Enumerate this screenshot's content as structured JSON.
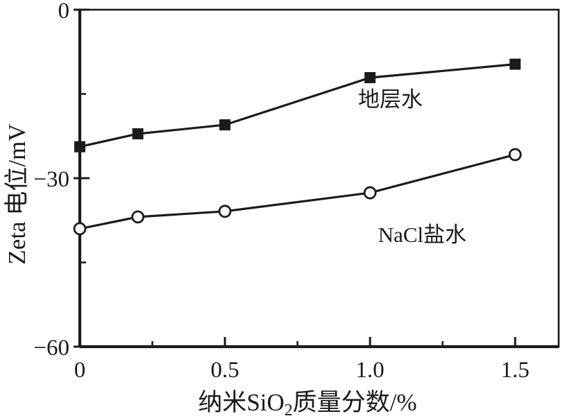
{
  "figure": {
    "background": "#ffffff",
    "ink_color": "#1b1b1b"
  },
  "chart_data": {
    "type": "line",
    "title": "",
    "xlabel": "纳米SiO₂质量分数/%",
    "xlabel_parts": {
      "pre": "纳米SiO",
      "sub": "2",
      "post": "质量分数/%"
    },
    "ylabel": "Zeta 电位/mV",
    "xlim": [
      0,
      1.65
    ],
    "ylim": [
      -60,
      0
    ],
    "grid": false,
    "legend_position": "inline-annotations",
    "x_major_ticks": [
      {
        "v": 0,
        "label": "0"
      },
      {
        "v": 0.5,
        "label": "0.5"
      },
      {
        "v": 1.0,
        "label": "1.0"
      },
      {
        "v": 1.5,
        "label": "1.5"
      }
    ],
    "x_minor_ticks": [
      0.25,
      0.75,
      1.25
    ],
    "y_major_ticks": [
      {
        "v": 0,
        "label": "0"
      },
      {
        "v": -30,
        "label": "−30"
      },
      {
        "v": -60,
        "label": "−60"
      }
    ],
    "y_minor_ticks": [
      -15,
      -45
    ],
    "x": [
      0,
      0.2,
      0.5,
      1.0,
      1.5
    ],
    "series": [
      {
        "name": "地层水",
        "key": "formation-water",
        "marker": "filled-square",
        "color": "#1b1b1b",
        "values": [
          -24.4,
          -22.1,
          -20.5,
          -12.1,
          -9.7
        ],
        "label": {
          "text": "地层水",
          "x": 1.07,
          "y": -15.9
        }
      },
      {
        "name": "NaCl盐水",
        "key": "nacl-brine",
        "marker": "open-circle",
        "color": "#1b1b1b",
        "values": [
          -39.0,
          -36.9,
          -35.9,
          -32.6,
          -25.8
        ],
        "label": {
          "text": "NaCl盐水",
          "x": 1.18,
          "y": -40.0
        }
      }
    ]
  }
}
